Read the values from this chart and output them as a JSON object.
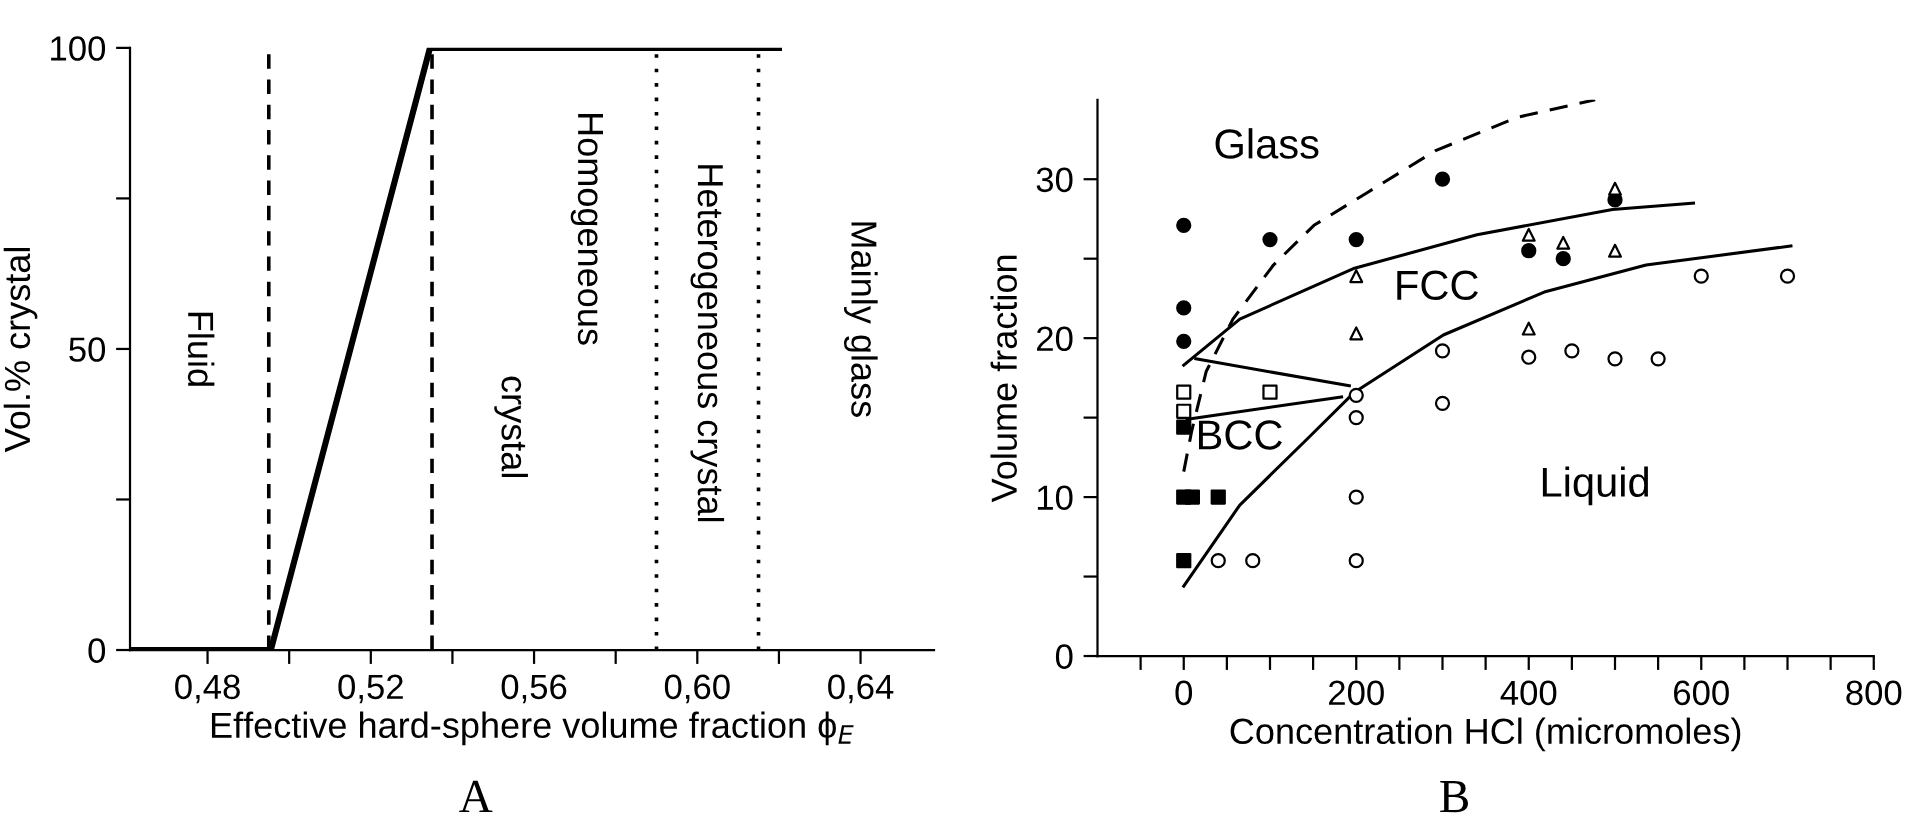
{
  "chart_data": [
    {
      "type": "line",
      "xlabel": "Effective hard-sphere volume fraction ϕ$_{E}$",
      "ylabel": "Vol.% crystal",
      "xlim": [
        0.461,
        0.658
      ],
      "ylim": [
        0,
        100
      ],
      "xticks": [
        {
          "value": 0.48,
          "label": "0,48"
        },
        {
          "value": 0.5,
          "label": null
        },
        {
          "value": 0.52,
          "label": "0,52"
        },
        {
          "value": 0.54,
          "label": null
        },
        {
          "value": 0.56,
          "label": "0,56"
        },
        {
          "value": 0.58,
          "label": null
        },
        {
          "value": 0.6,
          "label": "0,60"
        },
        {
          "value": 0.62,
          "label": null
        },
        {
          "value": 0.64,
          "label": "0,64"
        }
      ],
      "yticks": [
        0,
        {
          "value": 25,
          "label": null
        },
        50,
        {
          "value": 75,
          "label": null
        },
        100
      ],
      "grid": false,
      "legend": false,
      "series": [
        {
          "type": "line",
          "color": "#000000",
          "line_style": "solid",
          "marker": "none",
          "x": [
            0.461,
            0.4955,
            0.5345,
            0.62
          ],
          "values": [
            0,
            0,
            100,
            100
          ]
        }
      ],
      "ref_lines": [
        {
          "axis": "x",
          "value": 0.495,
          "color": "#000000",
          "line_style": "dashed"
        },
        {
          "axis": "x",
          "value": 0.535,
          "color": "#000000",
          "line_style": "dashed"
        },
        {
          "axis": "x",
          "value": 0.59,
          "color": "#000000",
          "line_style": "dotted"
        },
        {
          "axis": "x",
          "value": 0.615,
          "color": "#000000",
          "line_style": "dotted"
        }
      ],
      "annotations": [
        "Fluid",
        "Homogeneous",
        "crystal",
        "Heterogeneous crystal",
        "Mainly glass",
        "A"
      ]
    },
    {
      "type": "scatter",
      "xlabel": "Concentration HCl (micromoles)",
      "ylabel": "Volume fraction",
      "xlim": [
        -100,
        800
      ],
      "ylim": [
        0,
        35
      ],
      "xticks": [
        {
          "value": -50,
          "label": null
        },
        0,
        {
          "value": 50,
          "label": null
        },
        {
          "value": 100,
          "label": null
        },
        {
          "value": 150,
          "label": null
        },
        200,
        {
          "value": 250,
          "label": null
        },
        {
          "value": 300,
          "label": null
        },
        {
          "value": 350,
          "label": null
        },
        400,
        {
          "value": 450,
          "label": null
        },
        {
          "value": 500,
          "label": null
        },
        {
          "value": 550,
          "label": null
        },
        600,
        {
          "value": 650,
          "label": null
        },
        {
          "value": 700,
          "label": null
        },
        {
          "value": 750,
          "label": null
        },
        800
      ],
      "yticks": [
        0,
        {
          "value": 5,
          "label": null
        },
        10,
        {
          "value": 15,
          "label": null
        },
        20,
        {
          "value": 25,
          "label": null
        },
        30
      ],
      "grid": false,
      "legend": false,
      "series": [
        {
          "type": "scatter",
          "marker": "circle",
          "color": "#000000",
          "x": [
            0,
            0,
            0,
            100,
            200,
            300,
            400,
            440,
            500
          ],
          "values": [
            27.1,
            21.9,
            19.8,
            26.2,
            26.2,
            30.0,
            25.5,
            25.0,
            28.7
          ]
        },
        {
          "type": "scatter",
          "marker": "triangle",
          "color": "#ffffff",
          "x": [
            200,
            200,
            400,
            400,
            440,
            500,
            500
          ],
          "values": [
            23.9,
            20.3,
            26.5,
            20.6,
            26.0,
            25.5,
            29.4
          ]
        },
        {
          "type": "scatter",
          "marker": "square",
          "color": "#ffffff",
          "x": [
            0,
            0,
            100
          ],
          "values": [
            16.6,
            15.4,
            16.6
          ]
        },
        {
          "type": "scatter",
          "marker": "square",
          "color": "#000000",
          "x": [
            0,
            0,
            10,
            40,
            0
          ],
          "values": [
            14.4,
            10.0,
            10.0,
            10.0,
            6.0
          ]
        },
        {
          "type": "scatter",
          "marker": "circle",
          "color": "#ffffff",
          "x": [
            40,
            80,
            200,
            200,
            200,
            200,
            300,
            300,
            400,
            450,
            500,
            550,
            600,
            700
          ],
          "values": [
            6,
            6,
            16.4,
            15.0,
            10,
            6,
            19.2,
            15.9,
            18.8,
            19.2,
            18.7,
            18.7,
            23.9,
            23.9
          ]
        },
        {
          "type": "line",
          "marker": "none",
          "line_style": "dashed",
          "color": "#000000",
          "x": [
            0,
            9,
            26,
            57,
            104,
            151,
            214,
            292,
            387,
            477
          ],
          "values": [
            11.6,
            14.1,
            17.9,
            21.2,
            24.6,
            27.1,
            29.2,
            31.8,
            33.9,
            35.0
          ]
        },
        {
          "type": "line",
          "marker": "none",
          "line_style": "solid",
          "color": "#000000",
          "x": [
            0,
            65,
            198,
            340,
            497,
            591
          ],
          "values": [
            18.3,
            21.2,
            24.4,
            26.5,
            28.1,
            28.5
          ]
        },
        {
          "type": "line",
          "marker": "none",
          "line_style": "solid",
          "color": "#000000",
          "x": [
            0,
            65,
            144,
            198,
            301,
            418,
            536,
            704
          ],
          "values": [
            4.4,
            9.5,
            13.7,
            16.6,
            20.2,
            22.9,
            24.6,
            25.8
          ]
        },
        {
          "type": "line",
          "marker": "none",
          "line_style": "solid",
          "color": "#000000",
          "x": [
            14,
            192
          ],
          "values": [
            18.7,
            17.0
          ]
        },
        {
          "type": "line",
          "marker": "none",
          "line_style": "solid",
          "color": "#000000",
          "x": [
            4,
            183
          ],
          "values": [
            14.9,
            16.3
          ]
        }
      ],
      "annotations": [
        "Glass",
        "FCC",
        "BCC",
        "Liquid",
        "B"
      ]
    }
  ]
}
